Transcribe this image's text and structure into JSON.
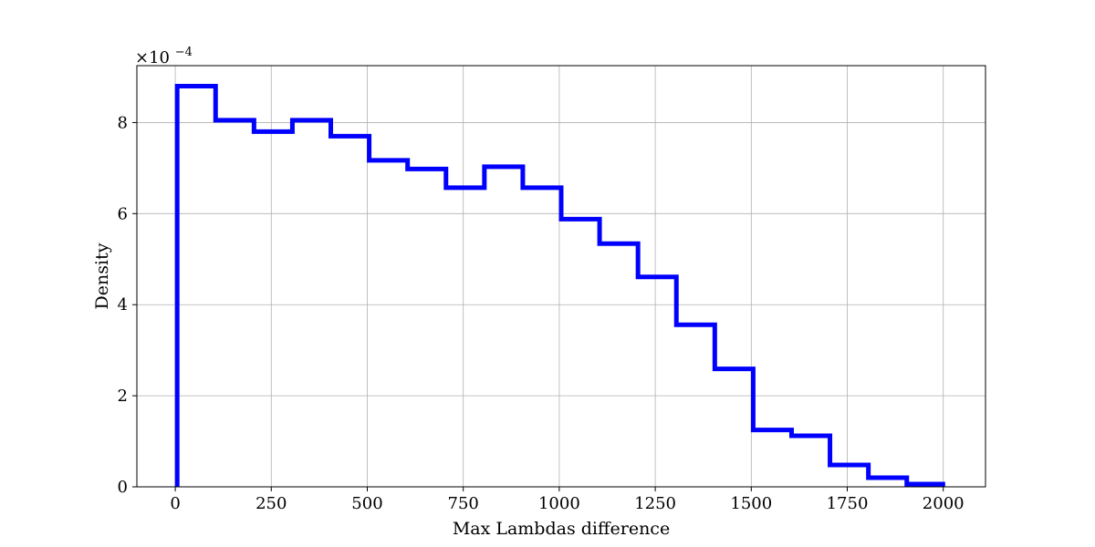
{
  "chart_data": {
    "type": "histogram",
    "xlabel": "Max Lambdas difference",
    "ylabel": "Density",
    "y_exponent_label": "×10",
    "y_exponent_power": "−4",
    "y_scale_factor": 0.0001,
    "xlim": [
      -100,
      2110
    ],
    "ylim": [
      0,
      0.000925
    ],
    "xticks": [
      0,
      250,
      500,
      750,
      1000,
      1250,
      1500,
      1750,
      2000
    ],
    "xtick_labels": [
      "0",
      "250",
      "500",
      "750",
      "1000",
      "1250",
      "1500",
      "1750",
      "2000"
    ],
    "yticks": [
      0,
      0.0002,
      0.0004,
      0.0006,
      0.0008
    ],
    "ytick_labels": [
      "0",
      "2",
      "4",
      "6",
      "8"
    ],
    "grid": true,
    "line_color": "#0000ff",
    "bin_edges": [
      5,
      105,
      205,
      305,
      405,
      505,
      605,
      705,
      805,
      905,
      1005,
      1105,
      1205,
      1305,
      1405,
      1505,
      1605,
      1705,
      1805,
      1905,
      2005
    ],
    "densities": [
      0.00088,
      0.000805,
      0.00078,
      0.000805,
      0.00077,
      0.000717,
      0.000698,
      0.000657,
      0.000703,
      0.000657,
      0.000588,
      0.000534,
      0.000461,
      0.000356,
      0.000259,
      0.000125,
      0.000112,
      4.8e-05,
      2e-05,
      6e-06
    ]
  }
}
